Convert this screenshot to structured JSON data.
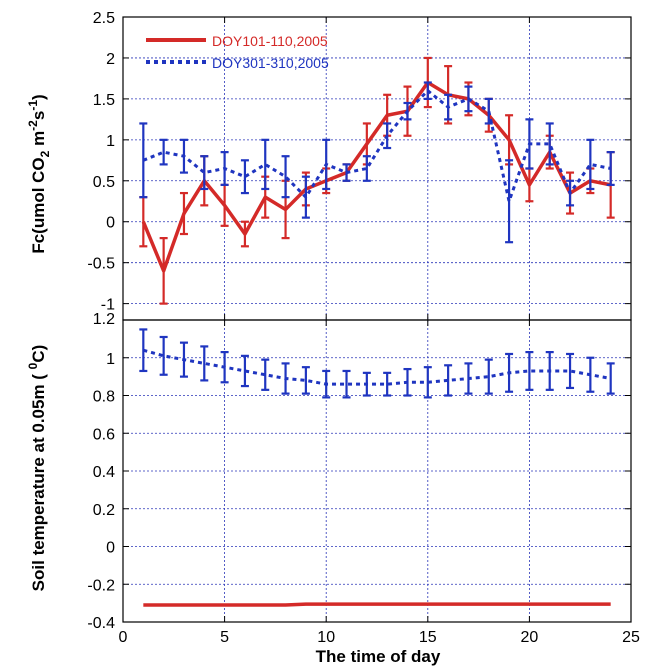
{
  "chart_data": [
    {
      "type": "line",
      "panel": "top",
      "ylabel_parts": [
        "Fc(umol CO",
        "2",
        " m",
        "-2",
        "s",
        "-1",
        ")"
      ],
      "ylim": [
        -1.2,
        2.5
      ],
      "y_ticks": [
        -1,
        -0.5,
        0,
        0.5,
        1,
        1.5,
        2,
        2.5
      ],
      "y_tick_labels": [
        "-1",
        "-0.5",
        "0",
        "0.5",
        "1",
        "1.5",
        "2",
        "2.5"
      ],
      "xlim": [
        0,
        25
      ],
      "x_grid": [
        5,
        10,
        15,
        20
      ],
      "legend_position": "top-left",
      "series": [
        {
          "name": "DOY101-110,2005",
          "color": "#d42a28",
          "style": "solid",
          "x": [
            1,
            2,
            3,
            4,
            5,
            6,
            7,
            8,
            9,
            10,
            11,
            12,
            13,
            14,
            15,
            16,
            17,
            18,
            19,
            20,
            21,
            22,
            23,
            24
          ],
          "values": [
            0.0,
            -0.6,
            0.1,
            0.5,
            0.2,
            -0.15,
            0.3,
            0.15,
            0.4,
            0.5,
            0.6,
            0.95,
            1.3,
            1.35,
            1.7,
            1.55,
            1.5,
            1.3,
            1.0,
            0.45,
            0.85,
            0.35,
            0.5,
            0.45
          ],
          "errors": [
            0.3,
            0.4,
            0.25,
            0.3,
            0.25,
            0.15,
            0.25,
            0.35,
            0.2,
            0.15,
            0.1,
            0.25,
            0.25,
            0.3,
            0.3,
            0.35,
            0.2,
            0.2,
            0.3,
            0.2,
            0.2,
            0.25,
            0.15,
            0.4
          ]
        },
        {
          "name": "DOY301-310,2005",
          "color": "#1f35c0",
          "style": "dotted",
          "x": [
            1,
            2,
            3,
            4,
            5,
            6,
            7,
            8,
            9,
            10,
            11,
            12,
            13,
            14,
            15,
            16,
            17,
            18,
            19,
            20,
            21,
            22,
            23,
            24
          ],
          "values": [
            0.75,
            0.85,
            0.8,
            0.6,
            0.65,
            0.55,
            0.7,
            0.55,
            0.3,
            0.7,
            0.6,
            0.65,
            1.05,
            1.35,
            1.6,
            1.4,
            1.5,
            1.35,
            0.25,
            0.95,
            0.95,
            0.35,
            0.7,
            0.65
          ],
          "errors": [
            0.45,
            0.15,
            0.2,
            0.2,
            0.2,
            0.2,
            0.3,
            0.25,
            0.25,
            0.3,
            0.1,
            0.15,
            0.15,
            0.1,
            0.1,
            0.15,
            0.15,
            0.15,
            0.5,
            0.3,
            0.25,
            0.15,
            0.3,
            0.2
          ]
        }
      ]
    },
    {
      "type": "line",
      "panel": "bottom",
      "ylabel_parts": [
        "Soil temperature at 0.05m ( ",
        "0",
        "C)"
      ],
      "xlabel": "The time of day",
      "ylim": [
        -0.4,
        1.2
      ],
      "xlim": [
        0,
        25
      ],
      "y_ticks": [
        -0.4,
        -0.2,
        0,
        0.2,
        0.4,
        0.6,
        0.8,
        1,
        1.2
      ],
      "y_tick_labels": [
        "-0.4",
        "-0.2",
        "0",
        "0.2",
        "0.4",
        "0.6",
        "0.8",
        "1",
        "1.2"
      ],
      "x_ticks": [
        0,
        5,
        10,
        15,
        20,
        25
      ],
      "x_tick_labels": [
        "0",
        "5",
        "10",
        "15",
        "20",
        "25"
      ],
      "x_grid": [
        5,
        10,
        15,
        20
      ],
      "series": [
        {
          "name": "DOY101-110,2005",
          "color": "#d42a28",
          "style": "solid",
          "x": [
            1,
            2,
            3,
            4,
            5,
            6,
            7,
            8,
            9,
            10,
            11,
            12,
            13,
            14,
            15,
            16,
            17,
            18,
            19,
            20,
            21,
            22,
            23,
            24
          ],
          "values": [
            -0.31,
            -0.31,
            -0.31,
            -0.31,
            -0.31,
            -0.31,
            -0.31,
            -0.31,
            -0.305,
            -0.305,
            -0.305,
            -0.305,
            -0.305,
            -0.305,
            -0.305,
            -0.305,
            -0.305,
            -0.305,
            -0.305,
            -0.305,
            -0.305,
            -0.305,
            -0.305,
            -0.305
          ],
          "errors": []
        },
        {
          "name": "DOY301-310,2005",
          "color": "#1f35c0",
          "style": "dotted",
          "x": [
            1,
            2,
            3,
            4,
            5,
            6,
            7,
            8,
            9,
            10,
            11,
            12,
            13,
            14,
            15,
            16,
            17,
            18,
            19,
            20,
            21,
            22,
            23,
            24
          ],
          "values": [
            1.04,
            1.01,
            0.99,
            0.97,
            0.95,
            0.93,
            0.91,
            0.89,
            0.88,
            0.86,
            0.86,
            0.86,
            0.86,
            0.87,
            0.87,
            0.88,
            0.89,
            0.9,
            0.92,
            0.93,
            0.93,
            0.93,
            0.91,
            0.89
          ],
          "errors": [
            0.11,
            0.1,
            0.09,
            0.09,
            0.08,
            0.08,
            0.08,
            0.08,
            0.07,
            0.07,
            0.07,
            0.06,
            0.06,
            0.07,
            0.08,
            0.08,
            0.08,
            0.09,
            0.1,
            0.1,
            0.1,
            0.09,
            0.09,
            0.08
          ]
        }
      ]
    }
  ]
}
